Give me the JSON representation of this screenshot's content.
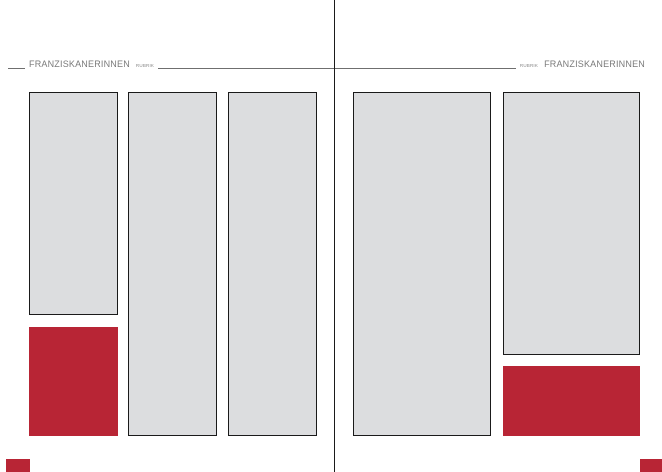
{
  "left_page": {
    "header": {
      "title": "FRANZISKANERINNEN",
      "rubrik": "RUBRIK"
    }
  },
  "right_page": {
    "header": {
      "rubrik": "RUBRIK",
      "title": "FRANZISKANERINNEN"
    }
  },
  "colors": {
    "accent_red": "#b82535",
    "placeholder_gray": "#dcdddf",
    "rule_gray": "#6f6f6f",
    "text_gray": "#7a7a7a"
  }
}
